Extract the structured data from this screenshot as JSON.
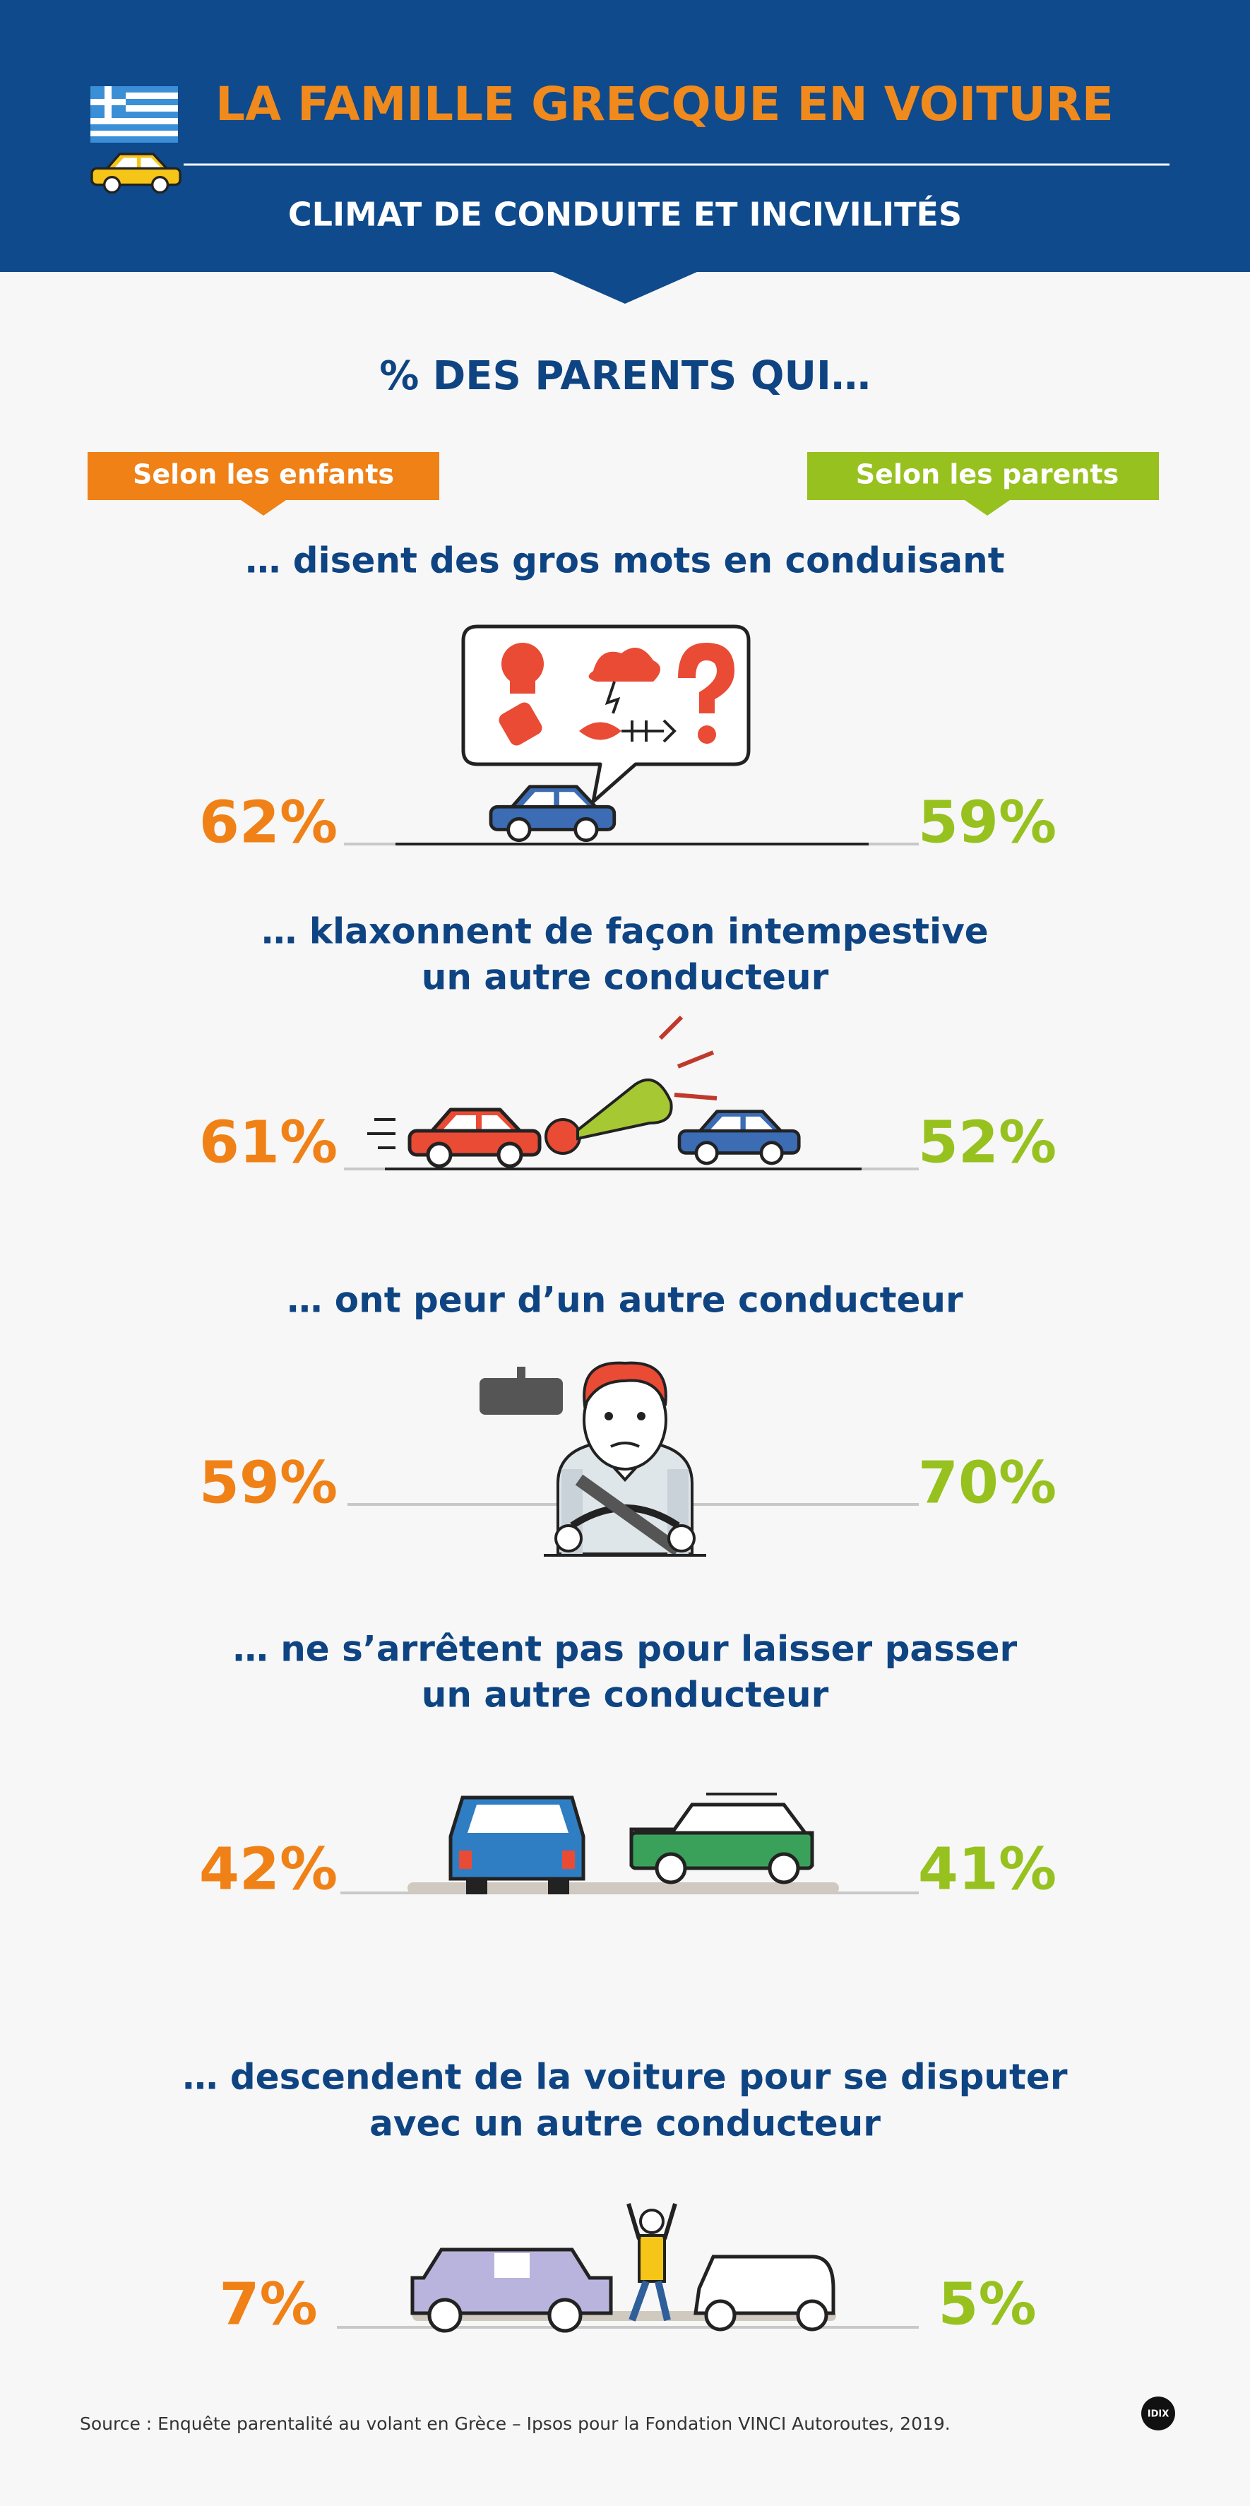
{
  "header": {
    "title": "LA FAMILLE GRECQUE EN VOITURE",
    "subtitle": "CLIMAT DE CONDUITE ET INCIVILITÉS"
  },
  "section_title": "% DES PARENTS QUI…",
  "legend": {
    "left": "Selon les enfants",
    "right": "Selon les parents"
  },
  "items": [
    {
      "label": [
        "… disent des gros mots en conduisant"
      ],
      "left": "62%",
      "right": "59%"
    },
    {
      "label": [
        "… klaxonnent de façon intempestive",
        "un autre conducteur"
      ],
      "left": "61%",
      "right": "52%"
    },
    {
      "label": [
        "… ont peur d’un autre conducteur"
      ],
      "left": "59%",
      "right": "70%"
    },
    {
      "label": [
        "… ne s’arrêtent pas pour laisser passer",
        "un autre conducteur"
      ],
      "left": "42%",
      "right": "41%"
    },
    {
      "label": [
        "… descendent de la voiture pour se disputer",
        "avec un autre conducteur"
      ],
      "left": "7%",
      "right": "5%"
    }
  ],
  "source": "Source : Enquête parentalité au volant en Grèce – Ipsos pour la Fondation VINCI Autoroutes, 2019.",
  "logo": "IDIX"
}
